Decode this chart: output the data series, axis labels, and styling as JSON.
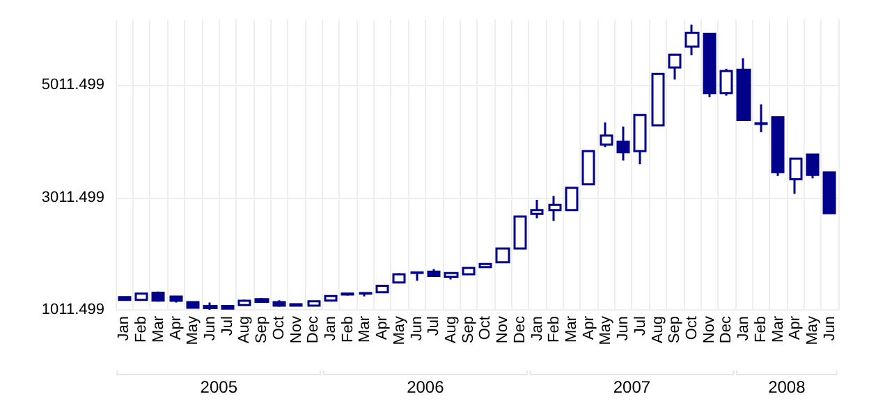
{
  "chart_data": {
    "type": "candlestick",
    "categories": [
      "Jan",
      "Feb",
      "Mar",
      "Apr",
      "May",
      "Jun",
      "Jul",
      "Aug",
      "Sep",
      "Oct",
      "Nov",
      "Dec",
      "Jan",
      "Feb",
      "Mar",
      "Apr",
      "May",
      "Jun",
      "Jul",
      "Aug",
      "Sep",
      "Oct",
      "Nov",
      "Dec",
      "Jan",
      "Feb",
      "Mar",
      "Apr",
      "May",
      "Jun",
      "Jul",
      "Aug",
      "Sep",
      "Oct",
      "Nov",
      "Dec",
      "Jan",
      "Feb",
      "Mar",
      "Apr",
      "May",
      "Jun"
    ],
    "annotations": [
      "2005",
      "2006",
      "2007",
      "2008"
    ],
    "ohlc": [
      [
        1240,
        1255,
        1180,
        1190
      ],
      [
        1188,
        1305,
        1185,
        1302
      ],
      [
        1315,
        1338,
        1155,
        1178
      ],
      [
        1247,
        1265,
        1142,
        1172
      ],
      [
        1148,
        1150,
        1045,
        1050
      ],
      [
        1080,
        1142,
        1011,
        1042
      ],
      [
        1080,
        1096,
        1020,
        1035
      ],
      [
        1096,
        1194,
        1090,
        1172
      ],
      [
        1200,
        1224,
        1150,
        1155
      ],
      [
        1148,
        1183,
        1064,
        1088
      ],
      [
        1088,
        1115,
        1085,
        1110
      ],
      [
        1088,
        1175,
        1085,
        1165
      ],
      [
        1178,
        1260,
        1175,
        1256
      ],
      [
        1285,
        1305,
        1263,
        1300
      ],
      [
        1300,
        1312,
        1250,
        1310
      ],
      [
        1325,
        1445,
        1320,
        1440
      ],
      [
        1498,
        1667,
        1495,
        1645
      ],
      [
        1670,
        1685,
        1530,
        1680
      ],
      [
        1690,
        1736,
        1605,
        1613
      ],
      [
        1600,
        1670,
        1553,
        1667
      ],
      [
        1645,
        1765,
        1640,
        1760
      ],
      [
        1772,
        1840,
        1760,
        1827
      ],
      [
        1857,
        2105,
        1850,
        2102
      ],
      [
        2102,
        2680,
        2095,
        2673
      ],
      [
        2719,
        2970,
        2642,
        2788
      ],
      [
        2788,
        3039,
        2596,
        2880
      ],
      [
        2788,
        3190,
        2780,
        3183
      ],
      [
        3245,
        3845,
        3240,
        3839
      ],
      [
        3953,
        4349,
        3908,
        4113
      ],
      [
        4006,
        4274,
        3670,
        3816
      ],
      [
        3839,
        4485,
        3601,
        4479
      ],
      [
        4296,
        5215,
        4290,
        5211
      ],
      [
        5325,
        5560,
        5110,
        5553
      ],
      [
        5697,
        6086,
        5545,
        5942
      ],
      [
        5926,
        5930,
        4799,
        4868
      ],
      [
        4868,
        5302,
        4822,
        5263
      ],
      [
        5286,
        5492,
        4380,
        4388
      ],
      [
        4335,
        4669,
        4173,
        4322
      ],
      [
        4440,
        4445,
        3396,
        3464
      ],
      [
        3336,
        3702,
        3076,
        3702
      ],
      [
        3777,
        3780,
        3350,
        3412
      ],
      [
        3457,
        3460,
        2730,
        2733
      ]
    ],
    "color": "#00008b",
    "ylim": [
      1000,
      6180
    ],
    "yticks": [
      1011.499,
      3011.499,
      5011.499
    ],
    "grid": true
  }
}
